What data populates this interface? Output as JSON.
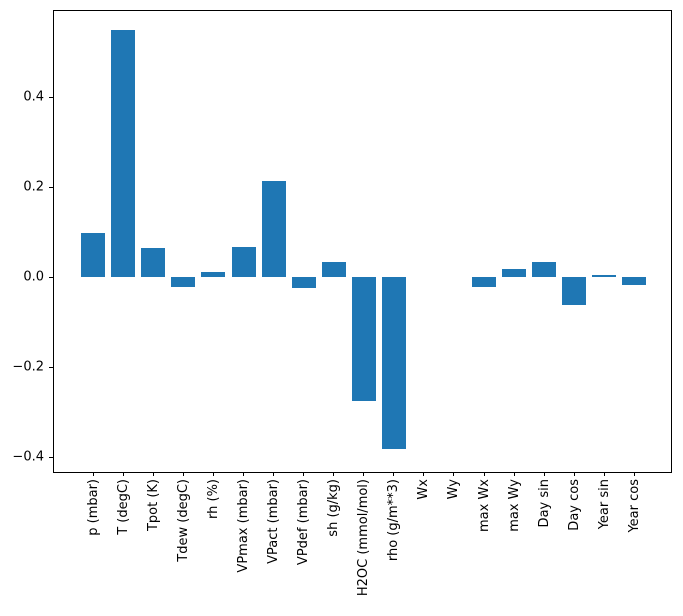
{
  "chart_data": {
    "type": "bar",
    "title": "",
    "xlabel": "",
    "ylabel": "",
    "categories": [
      "p (mbar)",
      "T (degC)",
      "Tpot (K)",
      "Tdew (degC)",
      "rh (%)",
      "VPmax (mbar)",
      "VPact (mbar)",
      "VPdef (mbar)",
      "sh (g/kg)",
      "H2OC (mmol/mol)",
      "rho (g/m**3)",
      "Wx",
      "Wy",
      "max Wx",
      "max Wy",
      "Day sin",
      "Day cos",
      "Year sin",
      "Year cos"
    ],
    "values": [
      0.098,
      0.548,
      0.064,
      -0.022,
      0.012,
      0.067,
      0.214,
      -0.024,
      0.033,
      -0.276,
      -0.382,
      0.0,
      0.0,
      -0.023,
      0.017,
      0.033,
      -0.061,
      0.004,
      -0.018
    ],
    "bar_color": "#1f77b4",
    "axis_color": "#000000",
    "text_color": "#000000",
    "background_color": "#ffffff",
    "ylim": [
      -0.433,
      0.593
    ],
    "ytick_values": [
      0.4,
      0.2,
      0.0,
      -0.2,
      -0.4
    ],
    "ytick_labels": [
      "0.4",
      "0.2",
      "0.0",
      "−0.2",
      "−0.4"
    ],
    "xtick_label_rotation_degrees": 90,
    "grid": false,
    "legend_position": "none"
  }
}
